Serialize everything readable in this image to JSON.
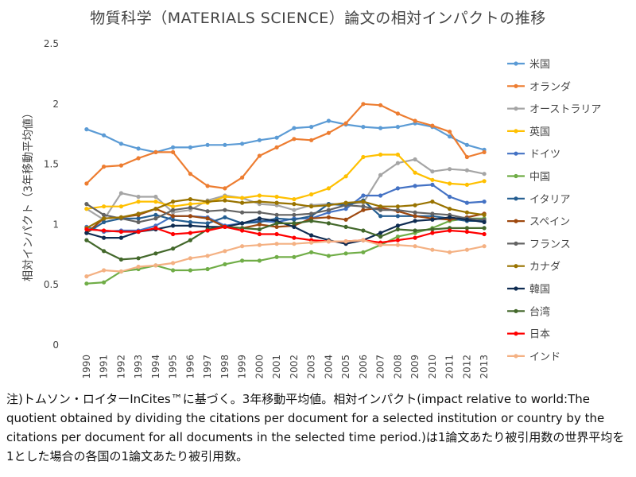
{
  "chart_data": {
    "type": "line",
    "title": "物質科学（MATERIALS SCIENCE）論文の相対インパクトの推移",
    "ylabel": "相対インパクト（3年移動平均値）",
    "xlabel": "",
    "ylim": [
      0,
      2.5
    ],
    "yticks": [
      0,
      0.5,
      1,
      1.5,
      2,
      2.5
    ],
    "ytick_labels": [
      "0",
      "0.5",
      "1",
      "1.5",
      "2",
      "2.5"
    ],
    "x": [
      "1990",
      "1991",
      "1992",
      "1993",
      "1994",
      "1995",
      "1996",
      "1997",
      "1998",
      "1999",
      "2000",
      "2001",
      "2002",
      "2003",
      "2004",
      "2005",
      "2006",
      "2007",
      "2008",
      "2009",
      "2010",
      "2011",
      "2012",
      "2013"
    ],
    "legend_position": "right",
    "series": [
      {
        "name": "米国",
        "color": "#5b9bd5",
        "values": [
          1.79,
          1.74,
          1.67,
          1.63,
          1.6,
          1.64,
          1.64,
          1.66,
          1.66,
          1.67,
          1.7,
          1.72,
          1.8,
          1.81,
          1.86,
          1.83,
          1.81,
          1.8,
          1.81,
          1.84,
          1.81,
          1.73,
          1.66,
          1.62
        ]
      },
      {
        "name": "オランダ",
        "color": "#ed7d31",
        "values": [
          1.34,
          1.48,
          1.49,
          1.55,
          1.6,
          1.6,
          1.42,
          1.32,
          1.3,
          1.39,
          1.57,
          1.64,
          1.71,
          1.7,
          1.76,
          1.84,
          2.0,
          1.99,
          1.92,
          1.86,
          1.82,
          1.77,
          1.56,
          1.6
        ]
      },
      {
        "name": "オーストラリア",
        "color": "#a5a5a5",
        "values": [
          1.13,
          1.04,
          1.26,
          1.23,
          1.23,
          1.1,
          1.12,
          1.2,
          1.24,
          1.22,
          1.17,
          1.16,
          1.12,
          1.16,
          1.17,
          1.17,
          1.18,
          1.41,
          1.51,
          1.54,
          1.44,
          1.46,
          1.45,
          1.42
        ]
      },
      {
        "name": "英国",
        "color": "#ffc000",
        "values": [
          1.13,
          1.15,
          1.15,
          1.19,
          1.19,
          1.15,
          1.17,
          1.18,
          1.23,
          1.22,
          1.24,
          1.23,
          1.21,
          1.25,
          1.3,
          1.4,
          1.56,
          1.58,
          1.58,
          1.43,
          1.37,
          1.34,
          1.33,
          1.36
        ]
      },
      {
        "name": "ドイツ",
        "color": "#4472c4",
        "values": [
          0.98,
          0.94,
          0.95,
          0.95,
          0.99,
          1.07,
          1.07,
          1.06,
          0.99,
          1.01,
          1.03,
          1.02,
          1.05,
          1.05,
          1.1,
          1.13,
          1.24,
          1.24,
          1.3,
          1.32,
          1.33,
          1.23,
          1.18,
          1.19
        ]
      },
      {
        "name": "中国",
        "color": "#70ad47",
        "values": [
          0.51,
          0.52,
          0.61,
          0.63,
          0.66,
          0.62,
          0.62,
          0.63,
          0.67,
          0.7,
          0.7,
          0.73,
          0.73,
          0.77,
          0.74,
          0.76,
          0.77,
          0.83,
          0.9,
          0.93,
          0.97,
          1.03,
          1.05,
          1.05
        ]
      },
      {
        "name": "イタリア",
        "color": "#255e91",
        "values": [
          0.93,
          1.02,
          1.05,
          1.05,
          1.08,
          1.04,
          1.02,
          1.01,
          1.06,
          1.01,
          1.02,
          1.05,
          1.04,
          1.07,
          1.17,
          1.16,
          1.2,
          1.07,
          1.07,
          1.07,
          1.07,
          1.05,
          1.03,
          1.03
        ]
      },
      {
        "name": "スペイン",
        "color": "#9e480e",
        "values": [
          0.93,
          1.05,
          1.06,
          1.08,
          1.13,
          1.07,
          1.07,
          1.05,
          0.98,
          0.97,
          1.0,
          0.98,
          0.99,
          1.05,
          1.06,
          1.04,
          1.12,
          1.14,
          1.11,
          1.07,
          1.05,
          1.04,
          1.06,
          1.09
        ]
      },
      {
        "name": "フランス",
        "color": "#636363",
        "values": [
          1.17,
          1.08,
          1.05,
          1.02,
          1.05,
          1.12,
          1.14,
          1.11,
          1.12,
          1.1,
          1.1,
          1.08,
          1.08,
          1.09,
          1.12,
          1.16,
          1.15,
          1.12,
          1.12,
          1.1,
          1.09,
          1.08,
          1.05,
          1.04
        ]
      },
      {
        "name": "カナダ",
        "color": "#997300",
        "values": [
          0.97,
          1.05,
          1.06,
          1.09,
          1.13,
          1.19,
          1.21,
          1.19,
          1.2,
          1.18,
          1.19,
          1.18,
          1.17,
          1.15,
          1.16,
          1.18,
          1.19,
          1.15,
          1.15,
          1.16,
          1.19,
          1.13,
          1.1,
          1.08
        ]
      },
      {
        "name": "韓国",
        "color": "#0f2c52",
        "values": [
          0.93,
          0.89,
          0.89,
          0.94,
          0.96,
          0.99,
          0.99,
          0.98,
          0.98,
          1.01,
          1.05,
          1.03,
          0.98,
          0.91,
          0.87,
          0.84,
          0.87,
          0.93,
          0.99,
          1.03,
          1.04,
          1.06,
          1.04,
          1.02
        ]
      },
      {
        "name": "台湾",
        "color": "#43682b",
        "values": [
          0.87,
          0.78,
          0.71,
          0.72,
          0.76,
          0.8,
          0.87,
          0.96,
          0.98,
          0.97,
          0.96,
          1.01,
          1.01,
          1.03,
          1.01,
          0.98,
          0.95,
          0.9,
          0.96,
          0.95,
          0.96,
          0.97,
          0.97,
          0.97
        ]
      },
      {
        "name": "日本",
        "color": "#ff0000",
        "values": [
          0.96,
          0.95,
          0.94,
          0.94,
          0.97,
          0.92,
          0.93,
          0.95,
          0.98,
          0.95,
          0.92,
          0.92,
          0.89,
          0.87,
          0.86,
          0.86,
          0.87,
          0.85,
          0.87,
          0.89,
          0.93,
          0.95,
          0.94,
          0.92
        ]
      },
      {
        "name": "インド",
        "color": "#f4b183",
        "values": [
          0.57,
          0.62,
          0.61,
          0.65,
          0.66,
          0.68,
          0.72,
          0.74,
          0.78,
          0.82,
          0.83,
          0.84,
          0.84,
          0.85,
          0.86,
          0.86,
          0.87,
          0.83,
          0.83,
          0.82,
          0.79,
          0.77,
          0.79,
          0.82
        ]
      }
    ]
  },
  "note": {
    "text": "注)トムソン・ロイターInCites™に基づく。3年移動平均値。相対インパクト(impact relative to world:The quotient obtained by dividing the citations per document for a selected institution or country by the citations per document for all documents in the selected time period.)は1論文あたり被引用数の世界平均を1とした場合の各国の1論文あたり被引用数。"
  }
}
